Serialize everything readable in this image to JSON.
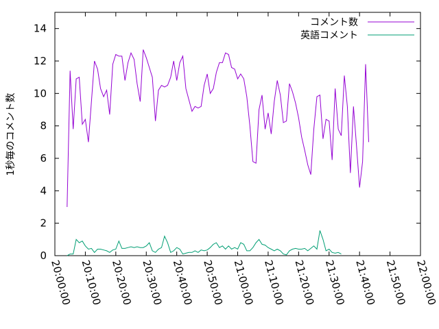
{
  "chart_data": {
    "type": "line",
    "title": "",
    "xlabel": "",
    "ylabel": "1秒毎のコメント数",
    "ylim": [
      0,
      15
    ],
    "yticks": [
      0,
      2,
      4,
      6,
      8,
      10,
      12,
      14
    ],
    "xlim": [
      "20:00:00",
      "22:00:00"
    ],
    "xticks": [
      "20:00:00",
      "20:10:00",
      "20:20:00",
      "20:30:00",
      "20:40:00",
      "20:50:00",
      "21:00:00",
      "21:10:00",
      "21:20:00",
      "21:30:00",
      "21:40:00",
      "21:50:00",
      "22:00:00"
    ],
    "grid": false,
    "legend": "top-right",
    "series": [
      {
        "name": "コメント数",
        "color": "#9400d3",
        "points": [
          [
            "20:04:00",
            3.0
          ],
          [
            "20:05:00",
            11.4
          ],
          [
            "20:06:00",
            7.8
          ],
          [
            "20:07:00",
            10.9
          ],
          [
            "20:08:00",
            11.0
          ],
          [
            "20:09:00",
            8.1
          ],
          [
            "20:10:00",
            8.4
          ],
          [
            "20:11:00",
            7.0
          ],
          [
            "20:12:00",
            9.5
          ],
          [
            "20:13:00",
            12.0
          ],
          [
            "20:14:00",
            11.5
          ],
          [
            "20:15:00",
            10.3
          ],
          [
            "20:16:00",
            9.8
          ],
          [
            "20:17:00",
            10.2
          ],
          [
            "20:18:00",
            8.7
          ],
          [
            "20:19:00",
            11.8
          ],
          [
            "20:20:00",
            12.4
          ],
          [
            "20:21:00",
            12.3
          ],
          [
            "20:22:00",
            12.3
          ],
          [
            "20:23:00",
            10.8
          ],
          [
            "20:24:00",
            11.9
          ],
          [
            "20:25:00",
            12.5
          ],
          [
            "20:26:00",
            12.1
          ],
          [
            "20:27:00",
            10.6
          ],
          [
            "20:28:00",
            9.5
          ],
          [
            "20:29:00",
            12.7
          ],
          [
            "20:30:00",
            12.2
          ],
          [
            "20:31:00",
            11.6
          ],
          [
            "20:32:00",
            11.0
          ],
          [
            "20:33:00",
            8.3
          ],
          [
            "20:34:00",
            10.2
          ],
          [
            "20:35:00",
            10.5
          ],
          [
            "20:36:00",
            10.4
          ],
          [
            "20:37:00",
            10.5
          ],
          [
            "20:38:00",
            11.0
          ],
          [
            "20:39:00",
            12.0
          ],
          [
            "20:40:00",
            10.8
          ],
          [
            "20:41:00",
            11.9
          ],
          [
            "20:42:00",
            12.3
          ],
          [
            "20:43:00",
            10.3
          ],
          [
            "20:44:00",
            9.6
          ],
          [
            "20:45:00",
            8.9
          ],
          [
            "20:46:00",
            9.2
          ],
          [
            "20:47:00",
            9.1
          ],
          [
            "20:48:00",
            9.2
          ],
          [
            "20:49:00",
            10.5
          ],
          [
            "20:50:00",
            11.2
          ],
          [
            "20:51:00",
            10.0
          ],
          [
            "20:52:00",
            10.3
          ],
          [
            "20:53:00",
            11.3
          ],
          [
            "20:54:00",
            11.9
          ],
          [
            "20:55:00",
            11.9
          ],
          [
            "20:56:00",
            12.5
          ],
          [
            "20:57:00",
            12.4
          ],
          [
            "20:58:00",
            11.6
          ],
          [
            "20:59:00",
            11.5
          ],
          [
            "21:00:00",
            10.9
          ],
          [
            "21:01:00",
            11.2
          ],
          [
            "21:02:00",
            10.9
          ],
          [
            "21:03:00",
            9.8
          ],
          [
            "21:04:00",
            8.0
          ],
          [
            "21:05:00",
            5.8
          ],
          [
            "21:06:00",
            5.7
          ],
          [
            "21:07:00",
            9.0
          ],
          [
            "21:08:00",
            9.9
          ],
          [
            "21:09:00",
            7.8
          ],
          [
            "21:10:00",
            8.8
          ],
          [
            "21:11:00",
            7.5
          ],
          [
            "21:12:00",
            9.5
          ],
          [
            "21:13:00",
            10.8
          ],
          [
            "21:14:00",
            9.9
          ],
          [
            "21:15:00",
            8.2
          ],
          [
            "21:16:00",
            8.3
          ],
          [
            "21:17:00",
            10.6
          ],
          [
            "21:18:00",
            10.1
          ],
          [
            "21:19:00",
            9.4
          ],
          [
            "21:20:00",
            8.5
          ],
          [
            "21:21:00",
            7.3
          ],
          [
            "21:22:00",
            6.5
          ],
          [
            "21:23:00",
            5.6
          ],
          [
            "21:24:00",
            5.0
          ],
          [
            "21:25:00",
            7.8
          ],
          [
            "21:26:00",
            9.8
          ],
          [
            "21:27:00",
            9.9
          ],
          [
            "21:28:00",
            7.2
          ],
          [
            "21:29:00",
            8.4
          ],
          [
            "21:30:00",
            8.3
          ],
          [
            "21:31:00",
            5.9
          ],
          [
            "21:32:00",
            10.3
          ],
          [
            "21:33:00",
            7.8
          ],
          [
            "21:34:00",
            7.4
          ],
          [
            "21:35:00",
            11.1
          ],
          [
            "21:36:00",
            9.2
          ],
          [
            "21:37:00",
            5.1
          ],
          [
            "21:38:00",
            9.2
          ],
          [
            "21:39:00",
            6.8
          ],
          [
            "21:40:00",
            4.2
          ],
          [
            "21:41:00",
            5.8
          ],
          [
            "21:42:00",
            11.8
          ],
          [
            "21:43:00",
            7.0
          ]
        ]
      },
      {
        "name": "英語コメント",
        "color": "#009e73",
        "points": [
          [
            "20:04:00",
            0.0
          ],
          [
            "20:05:00",
            0.1
          ],
          [
            "20:06:00",
            0.1
          ],
          [
            "20:07:00",
            1.0
          ],
          [
            "20:08:00",
            0.8
          ],
          [
            "20:09:00",
            0.9
          ],
          [
            "20:10:00",
            0.6
          ],
          [
            "20:11:00",
            0.4
          ],
          [
            "20:12:00",
            0.45
          ],
          [
            "20:13:00",
            0.2
          ],
          [
            "20:14:00",
            0.4
          ],
          [
            "20:15:00",
            0.4
          ],
          [
            "20:16:00",
            0.35
          ],
          [
            "20:17:00",
            0.3
          ],
          [
            "20:18:00",
            0.2
          ],
          [
            "20:19:00",
            0.35
          ],
          [
            "20:20:00",
            0.4
          ],
          [
            "20:21:00",
            0.9
          ],
          [
            "20:22:00",
            0.45
          ],
          [
            "20:23:00",
            0.45
          ],
          [
            "20:24:00",
            0.5
          ],
          [
            "20:25:00",
            0.55
          ],
          [
            "20:26:00",
            0.5
          ],
          [
            "20:27:00",
            0.55
          ],
          [
            "20:28:00",
            0.5
          ],
          [
            "20:29:00",
            0.5
          ],
          [
            "20:30:00",
            0.6
          ],
          [
            "20:31:00",
            0.8
          ],
          [
            "20:32:00",
            0.3
          ],
          [
            "20:33:00",
            0.2
          ],
          [
            "20:34:00",
            0.4
          ],
          [
            "20:35:00",
            0.5
          ],
          [
            "20:36:00",
            1.2
          ],
          [
            "20:37:00",
            0.8
          ],
          [
            "20:38:00",
            0.2
          ],
          [
            "20:39:00",
            0.3
          ],
          [
            "20:40:00",
            0.5
          ],
          [
            "20:41:00",
            0.4
          ],
          [
            "20:42:00",
            0.1
          ],
          [
            "20:43:00",
            0.15
          ],
          [
            "20:44:00",
            0.2
          ],
          [
            "20:45:00",
            0.2
          ],
          [
            "20:46:00",
            0.3
          ],
          [
            "20:47:00",
            0.2
          ],
          [
            "20:48:00",
            0.35
          ],
          [
            "20:49:00",
            0.3
          ],
          [
            "20:50:00",
            0.35
          ],
          [
            "20:51:00",
            0.5
          ],
          [
            "20:52:00",
            0.7
          ],
          [
            "20:53:00",
            0.8
          ],
          [
            "20:54:00",
            0.5
          ],
          [
            "20:55:00",
            0.6
          ],
          [
            "20:56:00",
            0.4
          ],
          [
            "20:57:00",
            0.6
          ],
          [
            "20:58:00",
            0.4
          ],
          [
            "20:59:00",
            0.5
          ],
          [
            "21:00:00",
            0.4
          ],
          [
            "21:01:00",
            0.8
          ],
          [
            "21:02:00",
            0.7
          ],
          [
            "21:03:00",
            0.3
          ],
          [
            "21:04:00",
            0.3
          ],
          [
            "21:05:00",
            0.5
          ],
          [
            "21:06:00",
            0.8
          ],
          [
            "21:07:00",
            1.0
          ],
          [
            "21:08:00",
            0.7
          ],
          [
            "21:09:00",
            0.65
          ],
          [
            "21:10:00",
            0.5
          ],
          [
            "21:11:00",
            0.4
          ],
          [
            "21:12:00",
            0.3
          ],
          [
            "21:13:00",
            0.4
          ],
          [
            "21:14:00",
            0.3
          ],
          [
            "21:15:00",
            0.1
          ],
          [
            "21:16:00",
            0.05
          ],
          [
            "21:17:00",
            0.3
          ],
          [
            "21:18:00",
            0.4
          ],
          [
            "21:19:00",
            0.45
          ],
          [
            "21:20:00",
            0.4
          ],
          [
            "21:21:00",
            0.4
          ],
          [
            "21:22:00",
            0.45
          ],
          [
            "21:23:00",
            0.3
          ],
          [
            "21:24:00",
            0.45
          ],
          [
            "21:25:00",
            0.6
          ],
          [
            "21:26:00",
            0.4
          ],
          [
            "21:27:00",
            1.55
          ],
          [
            "21:28:00",
            1.0
          ],
          [
            "21:29:00",
            0.3
          ],
          [
            "21:30:00",
            0.4
          ],
          [
            "21:31:00",
            0.2
          ],
          [
            "21:32:00",
            0.15
          ],
          [
            "21:33:00",
            0.2
          ],
          [
            "21:34:00",
            0.1
          ]
        ]
      }
    ]
  }
}
